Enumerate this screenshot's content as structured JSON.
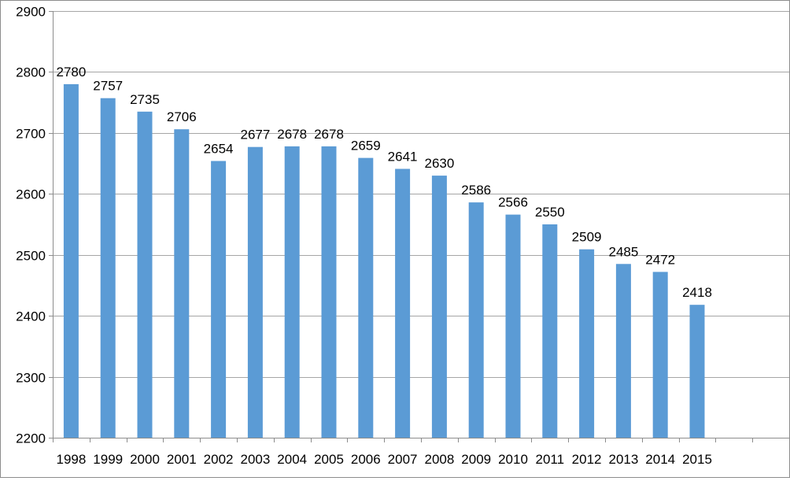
{
  "chart_data": {
    "type": "bar",
    "title": "",
    "xlabel": "",
    "ylabel": "",
    "categories": [
      "1998",
      "1999",
      "2000",
      "2001",
      "2002",
      "2003",
      "2004",
      "2005",
      "2006",
      "2007",
      "2008",
      "2009",
      "2010",
      "2011",
      "2012",
      "2013",
      "2014",
      "2015"
    ],
    "values": [
      2780,
      2757,
      2735,
      2706,
      2654,
      2677,
      2678,
      2678,
      2659,
      2641,
      2630,
      2586,
      2566,
      2550,
      2509,
      2485,
      2472,
      2418
    ],
    "ylim": [
      2200,
      2900
    ],
    "yticks": [
      "2200",
      "2300",
      "2400",
      "2500",
      "2600",
      "2700",
      "2800",
      "2900"
    ],
    "grid": true,
    "data_labels": true,
    "extra_empty_categories": 2,
    "colors": {
      "bar": "#5b9bd5",
      "grid": "#a6a6a6",
      "axis": "#8c8c8c"
    }
  }
}
